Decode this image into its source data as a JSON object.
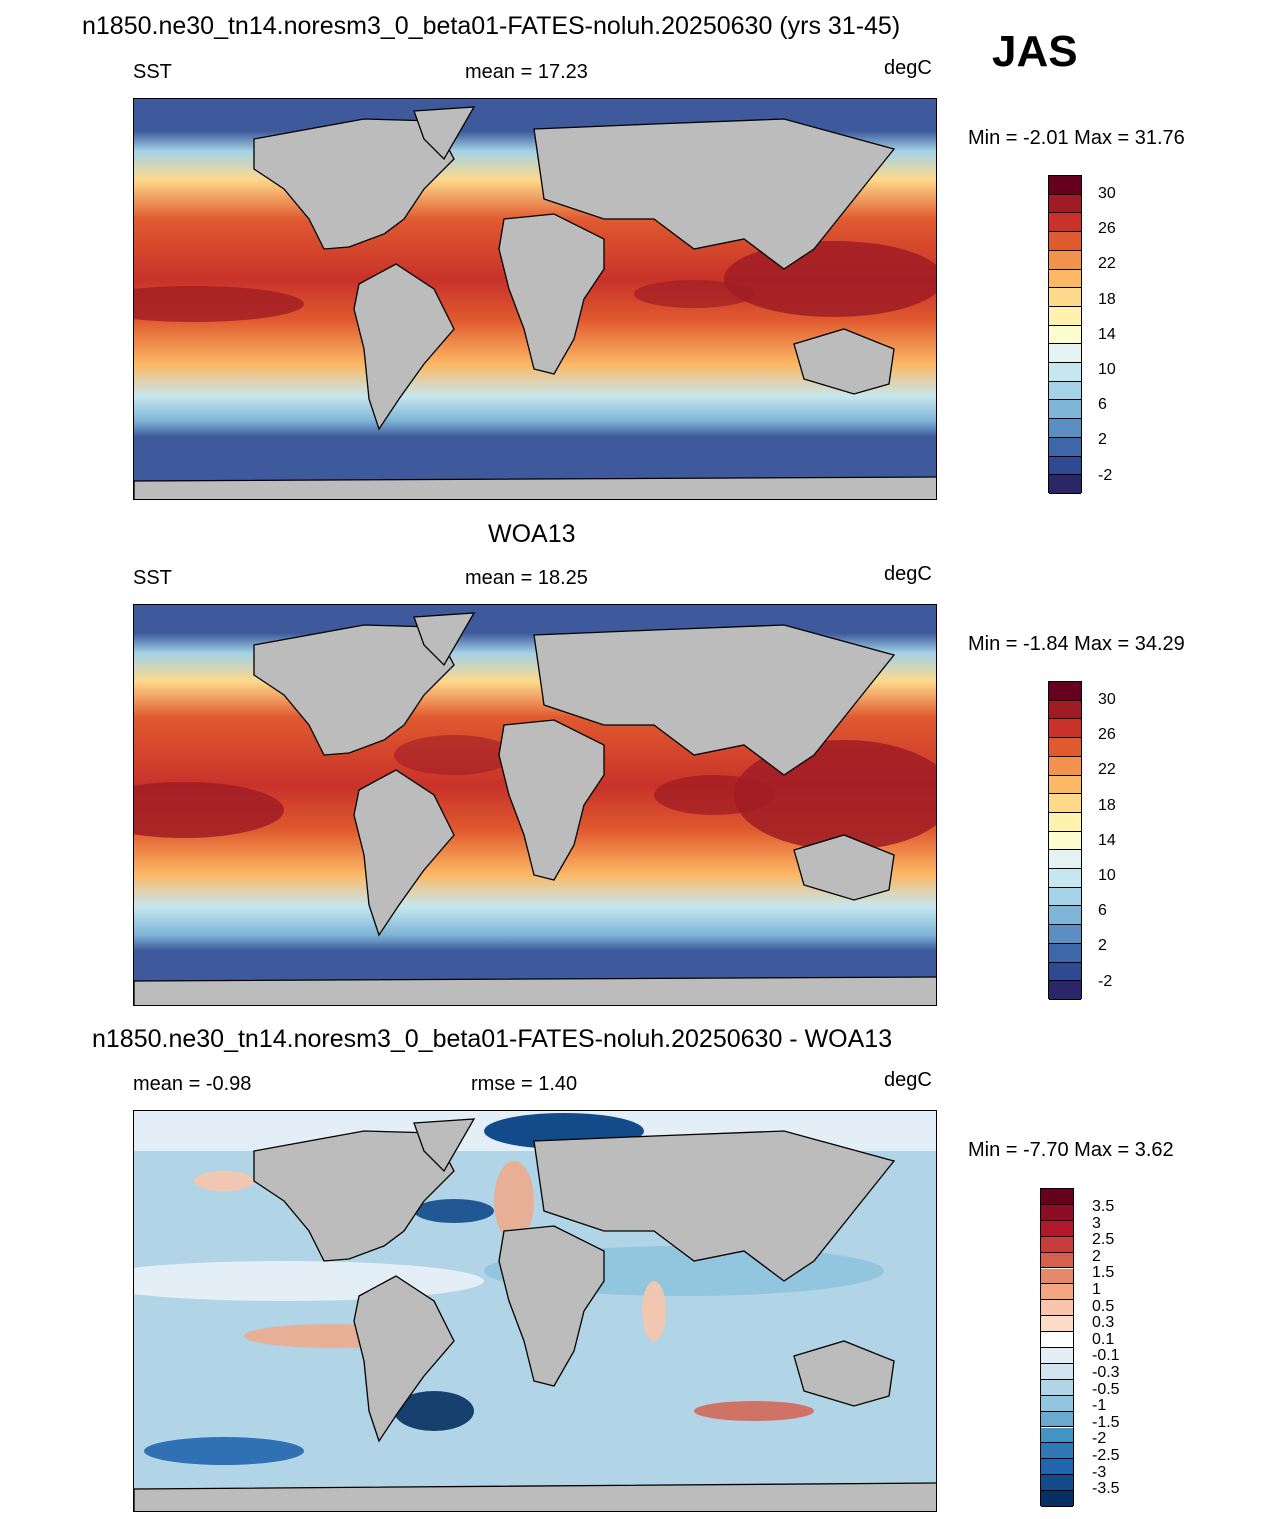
{
  "header": {
    "title": "n1850.ne30_tn14.noresm3_0_beta01-FATES-noluh.20250630 (yrs 31-45)",
    "season": "JAS"
  },
  "panels": [
    {
      "id": "model",
      "left_label": "SST",
      "center_label": "mean =  17.23",
      "units": "degC",
      "minmax": "Min =  -2.01 Max =  31.76"
    },
    {
      "id": "obs",
      "title": "WOA13",
      "left_label": "SST",
      "center_label": "mean =  18.25",
      "units": "degC",
      "minmax": "Min =  -1.84 Max =  34.29"
    },
    {
      "id": "diff",
      "title": "n1850.ne30_tn14.noresm3_0_beta01-FATES-noluh.20250630 - WOA13",
      "left_label": "mean =  -0.98",
      "center_label": "rmse =   1.40",
      "units": "degC",
      "minmax": "Min =  -7.70 Max =   3.62"
    }
  ],
  "sst_colorbar": {
    "labels": [
      "30",
      "26",
      "22",
      "18",
      "14",
      "10",
      "6",
      "2",
      "-2"
    ],
    "colors": [
      "#67001f",
      "#a01c24",
      "#c8322a",
      "#e05a2f",
      "#f3924d",
      "#fcb865",
      "#fdd98c",
      "#fff2ae",
      "#fbfcd0",
      "#e4f3f1",
      "#c6e7ef",
      "#a4d2e6",
      "#7fb5d7",
      "#5c8ec3",
      "#3e67a9",
      "#2e4a90",
      "#2a2667"
    ]
  },
  "diff_colorbar": {
    "labels": [
      "3.5",
      "3",
      "2.5",
      "2",
      "1.5",
      "1",
      "0.5",
      "0.3",
      "0.1",
      "-0.1",
      "-0.3",
      "-0.5",
      "-1",
      "-1.5",
      "-2",
      "-2.5",
      "-3",
      "-3.5"
    ],
    "colors": [
      "#67001f",
      "#8c0d25",
      "#b2182b",
      "#c73d3c",
      "#d6604d",
      "#e6896b",
      "#f4a582",
      "#f9c5ab",
      "#fddbc7",
      "#ffffff",
      "#e3eef6",
      "#d1e5f0",
      "#b1d4e7",
      "#92c5de",
      "#6aa9d0",
      "#4393c3",
      "#2f79b5",
      "#2166ac",
      "#124a8a",
      "#053061"
    ]
  }
}
